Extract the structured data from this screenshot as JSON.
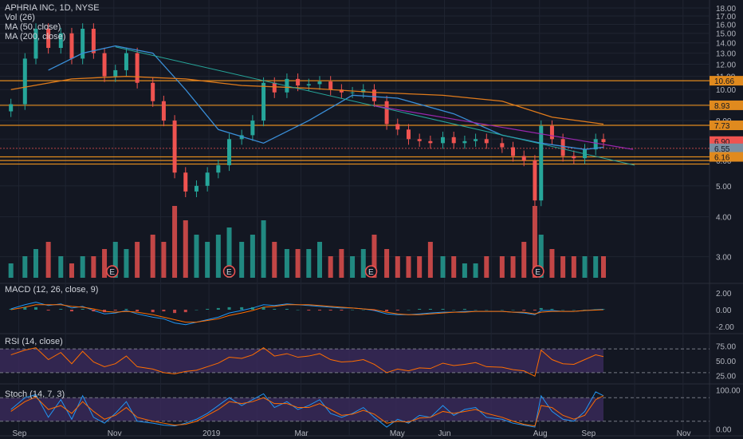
{
  "legend": {
    "main": "APHRIA INC, 1D, NYSE",
    "vol": "Vol (26)",
    "ma50": "MA (50, close)",
    "ma200": "MA (200, close)"
  },
  "colors": {
    "bg": "#131722",
    "grid": "#1f2431",
    "up": "#26a69a",
    "down": "#ef5350",
    "ma50": "#3a8fd9",
    "ma200": "#e07b1b",
    "hline": "#e08a1e",
    "trend_green": "#26a69a",
    "trend_purple": "#9c27b0",
    "rsi_fill": "#3b2a5c",
    "stoch_fill": "#3b2a5c",
    "earnings": "#ef5350"
  },
  "chart_data": [
    {
      "type": "candlestick",
      "title": "APHRIA INC, 1D, NYSE",
      "y_axis_ticks": [
        "18.00",
        "17.00",
        "16.00",
        "15.00",
        "14.00",
        "13.00",
        "12.00",
        "11.00",
        "10.00",
        "9.00",
        "8.00",
        "7.00",
        "6.00",
        "5.00",
        "4.00",
        "3.00"
      ],
      "x_axis_ticks": [
        "Sep",
        "Nov",
        "2019",
        "Mar",
        "May",
        "Jun",
        "Aug",
        "Sep",
        "Nov"
      ],
      "price_tags": [
        "10.66",
        "8.93",
        "7.73",
        "6.90",
        "6.55",
        "6.16"
      ],
      "horizontal_levels": [
        10.66,
        8.93,
        7.73,
        6.16,
        6.0,
        5.85
      ],
      "earnings_marker": "E",
      "earnings_dates": [
        "2018-10-31",
        "2019-01-14",
        "2019-04-15",
        "2019-07-31"
      ],
      "series": [
        {
          "name": "close",
          "x": [
            "2018-08-27",
            "2018-09-05",
            "2018-09-12",
            "2018-09-20",
            "2018-09-28",
            "2018-10-05",
            "2018-10-12",
            "2018-10-19",
            "2018-10-26",
            "2018-11-02",
            "2018-11-09",
            "2018-11-16",
            "2018-11-26",
            "2018-12-03",
            "2018-12-10",
            "2018-12-17",
            "2018-12-24",
            "2018-12-31",
            "2019-01-07",
            "2019-01-14",
            "2019-01-22",
            "2019-01-29",
            "2019-02-05",
            "2019-02-12",
            "2019-02-20",
            "2019-02-27",
            "2019-03-06",
            "2019-03-13",
            "2019-03-20",
            "2019-03-27",
            "2019-04-03",
            "2019-04-10",
            "2019-04-17",
            "2019-04-25",
            "2019-05-02",
            "2019-05-09",
            "2019-05-16",
            "2019-05-23",
            "2019-05-31",
            "2019-06-07",
            "2019-06-14",
            "2019-06-21",
            "2019-06-28",
            "2019-07-08",
            "2019-07-15",
            "2019-07-22",
            "2019-07-29",
            "2019-08-02",
            "2019-08-09",
            "2019-08-16",
            "2019-08-23",
            "2019-08-30",
            "2019-09-06",
            "2019-09-11"
          ],
          "values": [
            9.0,
            12.5,
            15.5,
            13.5,
            15.0,
            12.5,
            15.5,
            13.0,
            11.0,
            11.5,
            13.0,
            10.5,
            9.2,
            8.0,
            5.5,
            4.8,
            5.0,
            5.5,
            5.8,
            7.0,
            7.2,
            8.0,
            10.5,
            9.8,
            10.8,
            10.3,
            10.4,
            10.6,
            10.0,
            9.8,
            9.8,
            10.0,
            9.2,
            7.8,
            7.5,
            7.0,
            6.9,
            6.8,
            7.1,
            6.8,
            6.9,
            7.0,
            6.8,
            6.6,
            6.2,
            6.0,
            4.5,
            7.7,
            7.0,
            6.2,
            6.1,
            6.5,
            7.0,
            6.85
          ]
        },
        {
          "name": "MA (50, close)",
          "x": [
            "2018-09-20",
            "2018-10-12",
            "2018-11-02",
            "2018-11-26",
            "2018-12-17",
            "2019-01-07",
            "2019-02-05",
            "2019-03-06",
            "2019-04-03",
            "2019-05-02",
            "2019-06-07",
            "2019-07-08",
            "2019-08-02",
            "2019-08-30",
            "2019-09-11"
          ],
          "values": [
            11.5,
            13.0,
            13.7,
            13.0,
            10.0,
            7.5,
            6.8,
            8.0,
            9.6,
            9.4,
            8.4,
            7.2,
            6.8,
            6.5,
            6.6
          ]
        },
        {
          "name": "MA (200, close)",
          "x": [
            "2018-08-27",
            "2018-10-05",
            "2018-11-09",
            "2018-12-17",
            "2019-01-22",
            "2019-03-06",
            "2019-04-17",
            "2019-05-31",
            "2019-07-08",
            "2019-08-09",
            "2019-09-11"
          ],
          "values": [
            10.0,
            10.8,
            11.0,
            10.8,
            10.3,
            10.1,
            9.8,
            9.6,
            9.2,
            8.2,
            7.8
          ]
        }
      ],
      "volume_scale": [
        0.2,
        0.3,
        0.4,
        0.5,
        0.3,
        0.2,
        0.3,
        0.3,
        0.4,
        0.5,
        0.4,
        0.5,
        0.6,
        0.5,
        1.0,
        0.8,
        0.6,
        0.5,
        0.6,
        0.7,
        0.5,
        0.6,
        0.8,
        0.5,
        0.4,
        0.4,
        0.4,
        0.5,
        0.3,
        0.4,
        0.3,
        0.4,
        0.6,
        0.4,
        0.3,
        0.3,
        0.3,
        0.5,
        0.3,
        0.3,
        0.2,
        0.2,
        0.3,
        0.3,
        0.3,
        0.5,
        1.0,
        0.6,
        0.4,
        0.3,
        0.3,
        0.3,
        0.3,
        0.3
      ]
    },
    {
      "type": "line",
      "title": "MACD (12, 26, close, 9)",
      "y_axis_ticks": [
        "2.00",
        "0.00",
        "-2.00"
      ],
      "series": [
        {
          "name": "MACD",
          "values": [
            0.1,
            0.6,
            0.9,
            0.5,
            0.7,
            0.2,
            0.4,
            -0.1,
            -0.5,
            -0.4,
            -0.1,
            -0.5,
            -0.9,
            -1.1,
            -1.6,
            -1.8,
            -1.5,
            -1.2,
            -0.9,
            -0.4,
            -0.1,
            0.2,
            0.6,
            0.5,
            0.7,
            0.6,
            0.5,
            0.4,
            0.3,
            0.2,
            0.2,
            0.1,
            -0.1,
            -0.5,
            -0.6,
            -0.6,
            -0.5,
            -0.4,
            -0.3,
            -0.3,
            -0.2,
            -0.2,
            -0.2,
            -0.2,
            -0.3,
            -0.4,
            -0.6,
            -0.1,
            -0.1,
            -0.2,
            -0.2,
            -0.1,
            0.0,
            0.05
          ]
        },
        {
          "name": "Signal",
          "values": [
            0.0,
            0.3,
            0.6,
            0.6,
            0.6,
            0.4,
            0.3,
            0.1,
            -0.2,
            -0.3,
            -0.2,
            -0.3,
            -0.6,
            -0.9,
            -1.2,
            -1.5,
            -1.5,
            -1.3,
            -1.1,
            -0.7,
            -0.4,
            -0.1,
            0.3,
            0.4,
            0.6,
            0.6,
            0.6,
            0.5,
            0.4,
            0.3,
            0.2,
            0.1,
            0.0,
            -0.3,
            -0.5,
            -0.6,
            -0.6,
            -0.5,
            -0.4,
            -0.3,
            -0.3,
            -0.2,
            -0.2,
            -0.2,
            -0.3,
            -0.3,
            -0.5,
            -0.3,
            -0.2,
            -0.2,
            -0.2,
            -0.1,
            -0.05,
            0.0
          ]
        }
      ]
    },
    {
      "type": "line",
      "title": "RSI (14, close)",
      "y_axis_ticks": [
        "75.00",
        "50.00",
        "25.00"
      ],
      "bands": [
        70,
        30
      ],
      "series": [
        {
          "name": "RSI",
          "values": [
            60,
            68,
            72,
            52,
            64,
            45,
            66,
            48,
            40,
            45,
            58,
            40,
            36,
            30,
            28,
            32,
            34,
            40,
            46,
            56,
            54,
            60,
            72,
            58,
            62,
            56,
            58,
            62,
            52,
            48,
            49,
            52,
            44,
            30,
            36,
            33,
            38,
            37,
            46,
            42,
            44,
            47,
            40,
            39,
            35,
            33,
            24,
            68,
            52,
            45,
            44,
            52,
            60,
            57
          ]
        }
      ]
    },
    {
      "type": "line",
      "title": "Stoch (14, 7, 3)",
      "y_axis_ticks": [
        "100.00",
        "0.00"
      ],
      "bands": [
        80,
        20
      ],
      "series": [
        {
          "name": "%K",
          "values": [
            50,
            80,
            88,
            30,
            75,
            25,
            85,
            30,
            15,
            40,
            70,
            20,
            15,
            10,
            8,
            15,
            25,
            40,
            60,
            80,
            60,
            75,
            90,
            55,
            70,
            50,
            60,
            75,
            40,
            30,
            40,
            55,
            30,
            5,
            25,
            15,
            35,
            30,
            60,
            35,
            50,
            55,
            30,
            25,
            15,
            10,
            5,
            85,
            45,
            25,
            20,
            45,
            95,
            85
          ]
        },
        {
          "name": "%D",
          "values": [
            45,
            70,
            82,
            50,
            60,
            40,
            70,
            45,
            25,
            35,
            55,
            30,
            20,
            15,
            10,
            12,
            20,
            35,
            50,
            70,
            65,
            70,
            80,
            65,
            65,
            55,
            55,
            65,
            50,
            35,
            38,
            48,
            38,
            15,
            20,
            18,
            28,
            30,
            45,
            40,
            45,
            50,
            40,
            30,
            20,
            12,
            8,
            60,
            55,
            35,
            25,
            35,
            75,
            85
          ]
        }
      ]
    }
  ]
}
